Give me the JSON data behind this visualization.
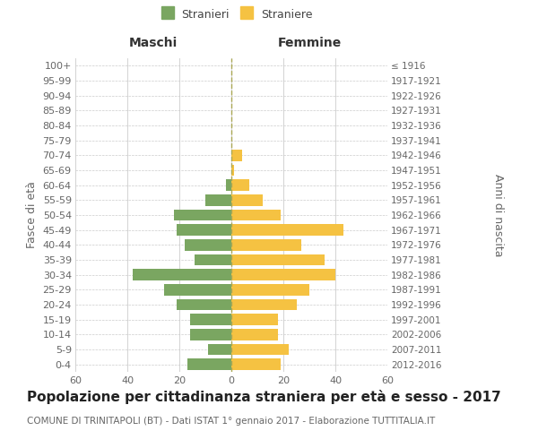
{
  "age_groups": [
    "0-4",
    "5-9",
    "10-14",
    "15-19",
    "20-24",
    "25-29",
    "30-34",
    "35-39",
    "40-44",
    "45-49",
    "50-54",
    "55-59",
    "60-64",
    "65-69",
    "70-74",
    "75-79",
    "80-84",
    "85-89",
    "90-94",
    "95-99",
    "100+"
  ],
  "birth_years": [
    "2012-2016",
    "2007-2011",
    "2002-2006",
    "1997-2001",
    "1992-1996",
    "1987-1991",
    "1982-1986",
    "1977-1981",
    "1972-1976",
    "1967-1971",
    "1962-1966",
    "1957-1961",
    "1952-1956",
    "1947-1951",
    "1942-1946",
    "1937-1941",
    "1932-1936",
    "1927-1931",
    "1922-1926",
    "1917-1921",
    "≤ 1916"
  ],
  "maschi": [
    17,
    9,
    16,
    16,
    21,
    26,
    38,
    14,
    18,
    21,
    22,
    10,
    2,
    0,
    0,
    0,
    0,
    0,
    0,
    0,
    0
  ],
  "femmine": [
    19,
    22,
    18,
    18,
    25,
    30,
    40,
    36,
    27,
    43,
    19,
    12,
    7,
    1,
    4,
    0,
    0,
    0,
    0,
    0,
    0
  ],
  "maschi_color": "#7aa661",
  "femmine_color": "#f5c242",
  "title": "Popolazione per cittadinanza straniera per età e sesso - 2017",
  "subtitle": "COMUNE DI TRINITAPOLI (BT) - Dati ISTAT 1° gennaio 2017 - Elaborazione TUTTITALIA.IT",
  "ylabel_left": "Fasce di età",
  "ylabel_right": "Anni di nascita",
  "header_left": "Maschi",
  "header_right": "Femmine",
  "legend_stranieri": "Stranieri",
  "legend_straniere": "Straniere",
  "xlim": 60,
  "bg_color": "#ffffff",
  "grid_color": "#cccccc",
  "bar_height": 0.75,
  "title_fontsize": 11,
  "subtitle_fontsize": 7.5,
  "axis_label_fontsize": 9,
  "tick_fontsize": 8
}
